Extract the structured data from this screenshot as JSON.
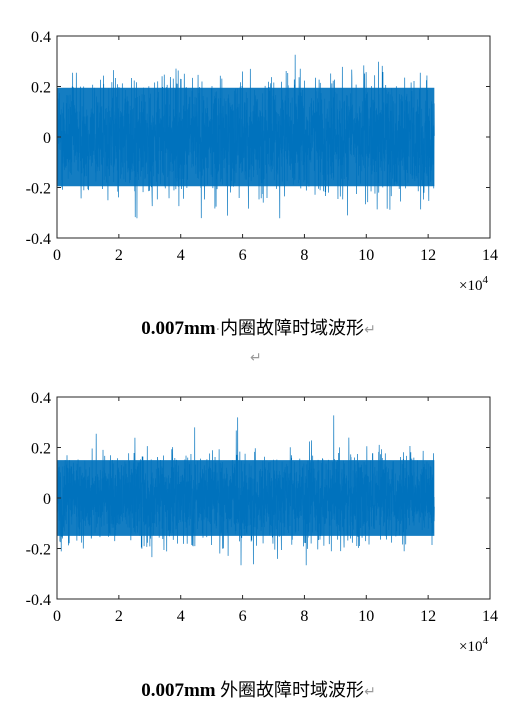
{
  "chart_data": [
    {
      "type": "line",
      "title": "",
      "xlabel": "",
      "ylabel": "",
      "x_exponent_label": "×10^4",
      "xlim": [
        0,
        14
      ],
      "ylim": [
        -0.4,
        0.4
      ],
      "x_ticks": [
        0,
        2,
        4,
        6,
        8,
        10,
        12,
        14
      ],
      "y_ticks": [
        -0.4,
        -0.2,
        0,
        0.2,
        0.4
      ],
      "x_tick_labels": [
        "0",
        "2",
        "4",
        "6",
        "8",
        "10",
        "12",
        "14"
      ],
      "y_tick_labels": [
        "-0.4",
        "-0.2",
        "0",
        "0.2",
        "0.4"
      ],
      "grid": false,
      "series": [
        {
          "color": "#0072BD",
          "x_start": 0,
          "x_end": 12.2,
          "envelope_typical": 0.26,
          "envelope_peak": 0.38,
          "min_peak": -0.34
        }
      ]
    },
    {
      "type": "line",
      "title": "",
      "xlabel": "",
      "ylabel": "",
      "x_exponent_label": "×10^4",
      "xlim": [
        0,
        14
      ],
      "ylim": [
        -0.4,
        0.4
      ],
      "x_ticks": [
        0,
        2,
        4,
        6,
        8,
        10,
        12,
        14
      ],
      "y_ticks": [
        -0.4,
        -0.2,
        0,
        0.2,
        0.4
      ],
      "x_tick_labels": [
        "0",
        "2",
        "4",
        "6",
        "8",
        "10",
        "12",
        "14"
      ],
      "y_tick_labels": [
        "-0.4",
        "-0.2",
        "0",
        "0.2",
        "0.4"
      ],
      "grid": false,
      "series": [
        {
          "color": "#0072BD",
          "x_start": 0,
          "x_end": 12.2,
          "envelope_typical": 0.2,
          "envelope_peak": 0.37,
          "min_peak": -0.28
        }
      ]
    }
  ],
  "captions": [
    {
      "size": "0.007mm",
      "sep": "·",
      "text": "内圈故障时域波形",
      "mark": "↵"
    },
    {
      "size": "0.007mm",
      "sep": " ",
      "text": "外圈故障时域波形",
      "mark": "↵"
    }
  ],
  "blank_paragraph_mark": "↵"
}
